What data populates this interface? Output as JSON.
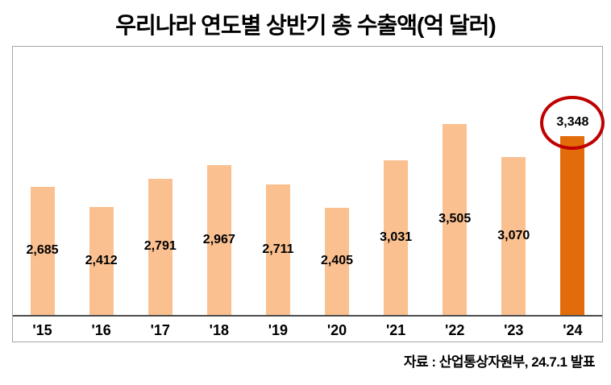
{
  "title": "우리나라 연도별 상반기 총 수출액(억 달러)",
  "source": "자료 : 산업통상자원부, 24.7.1 발표",
  "chart_data": {
    "type": "bar",
    "title": "우리나라 연도별 상반기 총 수출액(억 달러)",
    "xlabel": "",
    "ylabel": "",
    "categories": [
      "'15",
      "'16",
      "'17",
      "'18",
      "'19",
      "'20",
      "'21",
      "'22",
      "'23",
      "'24"
    ],
    "values": [
      2685,
      2412,
      2791,
      2967,
      2711,
      2405,
      3031,
      3505,
      3070,
      3348
    ],
    "value_labels": [
      "2,685",
      "2,412",
      "2,791",
      "2,967",
      "2,711",
      "2,405",
      "3,031",
      "3,505",
      "3,070",
      "3,348"
    ],
    "ylim": [
      1000,
      4520
    ],
    "y_axis_visible": false,
    "grid": false,
    "legend": false,
    "label_position_default": "inside-center",
    "label_position_last": "outside-end",
    "bar_color": "#FAC090",
    "highlight_color": "#E36C0A",
    "highlight_index": 9,
    "annotation": {
      "shape": "ellipse",
      "color": "#C00000",
      "target": "'24 value label"
    },
    "axis_line_color": "#4d4d4d",
    "frame_border_color": "#a6a6a6"
  }
}
